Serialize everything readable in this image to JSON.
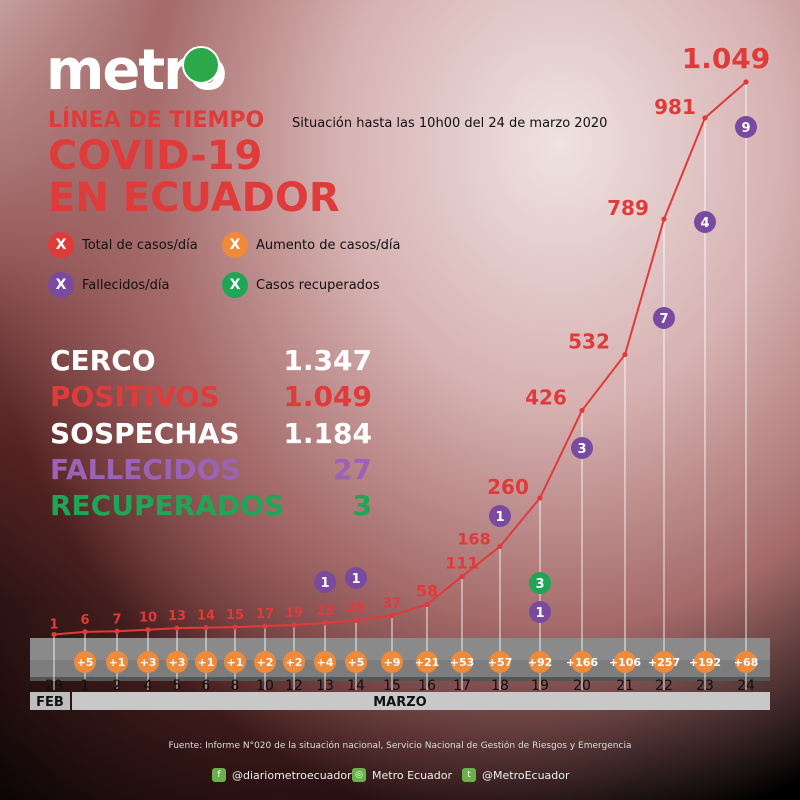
{
  "brand": {
    "name": "metro"
  },
  "header": {
    "kicker": "LÍNEA DE TIEMPO",
    "subtitle": "Situación hasta las 10h00 del 24 de marzo 2020",
    "title_line1": "COVID-19",
    "title_line2": "EN ECUADOR"
  },
  "legend": [
    {
      "symbol": "X",
      "label": "Total de casos/día",
      "color": "#e03b3b"
    },
    {
      "symbol": "X",
      "label": "Aumento de casos/día",
      "color": "#ef8a3a"
    },
    {
      "symbol": "X",
      "label": "Fallecidos/día",
      "color": "#7a4aa0"
    },
    {
      "symbol": "X",
      "label": "Casos recuperados",
      "color": "#1ea656"
    }
  ],
  "stats": [
    {
      "label": "CERCO",
      "value": "1.347",
      "color": "#ffffff"
    },
    {
      "label": "POSITIVOS",
      "value": "1.049",
      "color": "#e03b3b"
    },
    {
      "label": "SOSPECHAS",
      "value": "1.184",
      "color": "#ffffff"
    },
    {
      "label": "FALLECIDOS",
      "value": "27",
      "color": "#9a63b5"
    },
    {
      "label": "RECUPERADOS",
      "value": "3",
      "color": "#1ea656"
    }
  ],
  "chart_data": {
    "type": "line",
    "x": [
      "29",
      "1",
      "2",
      "4",
      "5",
      "6",
      "8",
      "10",
      "12",
      "13",
      "14",
      "15",
      "16",
      "17",
      "18",
      "19",
      "20",
      "21",
      "22",
      "23",
      "24"
    ],
    "total_labels": [
      "1",
      "6",
      "7",
      "10",
      "13",
      "14",
      "15",
      "17",
      "19",
      "23",
      "28",
      "37",
      "58",
      "111",
      "168",
      "260",
      "426",
      "532",
      "789",
      "981",
      "1.049"
    ],
    "series": [
      {
        "values": [
          1,
          6,
          7,
          10,
          13,
          14,
          15,
          17,
          19,
          23,
          28,
          37,
          58,
          111,
          168,
          260,
          426,
          532,
          789,
          981,
          1049
        ]
      }
    ],
    "increase_labels": [
      "",
      "+5",
      "+1",
      "+3",
      "+3",
      "+1",
      "+1",
      "+2",
      "+2",
      "+4",
      "+5",
      "+9",
      "+21",
      "+53",
      "+57",
      "+92",
      "+166",
      "+106",
      "+257",
      "+192",
      "+68"
    ],
    "deaths": [
      {
        "index": 9,
        "value": 1
      },
      {
        "index": 10,
        "value": 1
      },
      {
        "index": 14,
        "value": 1
      },
      {
        "index": 15,
        "value": 1
      },
      {
        "index": 16,
        "value": 3
      },
      {
        "index": 18,
        "value": 7
      },
      {
        "index": 19,
        "value": 4
      },
      {
        "index": 20,
        "value": 9
      }
    ],
    "recovered": [
      {
        "index": 15,
        "value": 3
      }
    ],
    "months": [
      {
        "label": "FEB"
      },
      {
        "label": "MARZO"
      }
    ],
    "ylim": [
      0,
      1100
    ],
    "colors": {
      "line": "#e03b3b",
      "increase": "#ef8a3a",
      "deaths": "#7a4aa0",
      "recovered": "#1ea656"
    }
  },
  "footer": {
    "source": "Fuente: Informe N°020 de la situación nacional, Servicio Nacional de Gestión de Riesgos y Emergencia",
    "facebook": "@diariometroecuador",
    "instagram": "Metro Ecuador",
    "twitter": "@MetroEcuador",
    "icons": [
      "facebook-icon",
      "instagram-icon",
      "twitter-icon"
    ]
  }
}
